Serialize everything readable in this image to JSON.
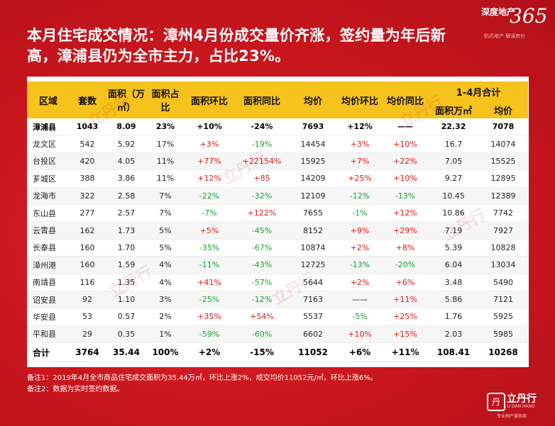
{
  "title": "本月住宅成交情况：漳州4月份成交量价齐涨，签约量为年后新高，漳浦县仍为全市主力，占比23%。",
  "logo": {
    "brand": "深度地产",
    "number": "365",
    "slogan": "贴近地产 解读房价"
  },
  "table": {
    "headers": {
      "region": "区域",
      "units": "套数",
      "area": "面积（万㎡）",
      "share": "面积占比",
      "area_mom": "面积环比",
      "area_yoy": "面积同比",
      "price": "均价",
      "price_mom": "均价环比",
      "price_yoy": "均价同比",
      "ytd": "1-4月合计",
      "ytd_area": "面积万㎡",
      "ytd_price": "均价"
    },
    "rows": [
      {
        "region": "漳浦县",
        "units": "1043",
        "area": "8.09",
        "share": "23%",
        "area_mom": "+10%",
        "area_yoy": "-24%",
        "price": "7693",
        "price_mom": "+12%",
        "price_yoy": "——",
        "ytd_area": "22.32",
        "ytd_price": "7078"
      },
      {
        "region": "龙文区",
        "units": "542",
        "area": "5.92",
        "share": "17%",
        "area_mom": "+3%",
        "area_yoy": "-19%",
        "price": "14454",
        "price_mom": "+3%",
        "price_yoy": "+10%",
        "ytd_area": "16.7",
        "ytd_price": "14074"
      },
      {
        "region": "台投区",
        "units": "420",
        "area": "4.05",
        "share": "11%",
        "area_mom": "+77%",
        "area_yoy": "+22154%",
        "price": "15925",
        "price_mom": "+7%",
        "price_yoy": "+22%",
        "ytd_area": "7.05",
        "ytd_price": "15525"
      },
      {
        "region": "芗城区",
        "units": "388",
        "area": "3.86",
        "share": "11%",
        "area_mom": "+12%",
        "area_yoy": "+85",
        "price": "14209",
        "price_mom": "+25%",
        "price_yoy": "+10%",
        "ytd_area": "9.27",
        "ytd_price": "12895"
      },
      {
        "region": "龙海市",
        "units": "322",
        "area": "2.58",
        "share": "7%",
        "area_mom": "-22%",
        "area_yoy": "-32%",
        "price": "12109",
        "price_mom": "-12%",
        "price_yoy": "-13%",
        "ytd_area": "10.45",
        "ytd_price": "12389"
      },
      {
        "region": "东山县",
        "units": "277",
        "area": "2.57",
        "share": "7%",
        "area_mom": "-7%",
        "area_yoy": "+122%",
        "price": "7655",
        "price_mom": "-1%",
        "price_yoy": "+12%",
        "ytd_area": "10.86",
        "ytd_price": "7742"
      },
      {
        "region": "云霄县",
        "units": "162",
        "area": "1.73",
        "share": "5%",
        "area_mom": "+5%",
        "area_yoy": "-45%",
        "price": "8152",
        "price_mom": "+9%",
        "price_yoy": "+29%",
        "ytd_area": "7.19",
        "ytd_price": "7927"
      },
      {
        "region": "长泰县",
        "units": "160",
        "area": "1.70",
        "share": "5%",
        "area_mom": "-35%",
        "area_yoy": "-67%",
        "price": "10874",
        "price_mom": "+2%",
        "price_yoy": "+8%",
        "ytd_area": "5.39",
        "ytd_price": "10828"
      },
      {
        "region": "漳州港",
        "units": "160",
        "area": "1.59",
        "share": "4%",
        "area_mom": "-11%",
        "area_yoy": "-43%",
        "price": "12725",
        "price_mom": "-13%",
        "price_yoy": "-20%",
        "ytd_area": "6.04",
        "ytd_price": "13034"
      },
      {
        "region": "南靖县",
        "units": "116",
        "area": "1.35",
        "share": "4%",
        "area_mom": "+41%",
        "area_yoy": "-57%",
        "price": "5644",
        "price_mom": "+2%",
        "price_yoy": "+6%",
        "ytd_area": "3.48",
        "ytd_price": "5490"
      },
      {
        "region": "诏安县",
        "units": "92",
        "area": "1.10",
        "share": "3%",
        "area_mom": "-25%",
        "area_yoy": "-12%",
        "price": "7163",
        "price_mom": "——",
        "price_yoy": "+11%",
        "ytd_area": "5.86",
        "ytd_price": "7121"
      },
      {
        "region": "华安县",
        "units": "53",
        "area": "0.57",
        "share": "2%",
        "area_mom": "+35%",
        "area_yoy": "+54%",
        "price": "5537",
        "price_mom": "-5%",
        "price_yoy": "+25%",
        "ytd_area": "1.76",
        "ytd_price": "5925"
      },
      {
        "region": "平和县",
        "units": "29",
        "area": "0.35",
        "share": "1%",
        "area_mom": "-59%",
        "area_yoy": "-60%",
        "price": "6602",
        "price_mom": "+10%",
        "price_yoy": "+15%",
        "ytd_area": "2.03",
        "ytd_price": "5985"
      }
    ],
    "total": {
      "region": "合计",
      "units": "3764",
      "area": "35.44",
      "share": "100%",
      "area_mom": "+2%",
      "area_yoy": "-15%",
      "price": "11052",
      "price_mom": "+6%",
      "price_yoy": "+11%",
      "ytd_area": "108.41",
      "ytd_price": "10268"
    }
  },
  "notes": [
    "备注1：2019年4月全市商品住宅成交面积为35.44万㎡，环比上涨2%，成交均价11052元/㎡，环比上涨6%。",
    "备注2：数据为实时签约数据。"
  ],
  "bottom_logo": {
    "name": "立丹行",
    "en": "LI DAN HANG",
    "tag": "专业地产服务商"
  },
  "watermark": "立丹行",
  "colors": {
    "background": "#c8161d",
    "header": "#f6c21c",
    "up": "#e0161b",
    "down": "#16a234"
  }
}
